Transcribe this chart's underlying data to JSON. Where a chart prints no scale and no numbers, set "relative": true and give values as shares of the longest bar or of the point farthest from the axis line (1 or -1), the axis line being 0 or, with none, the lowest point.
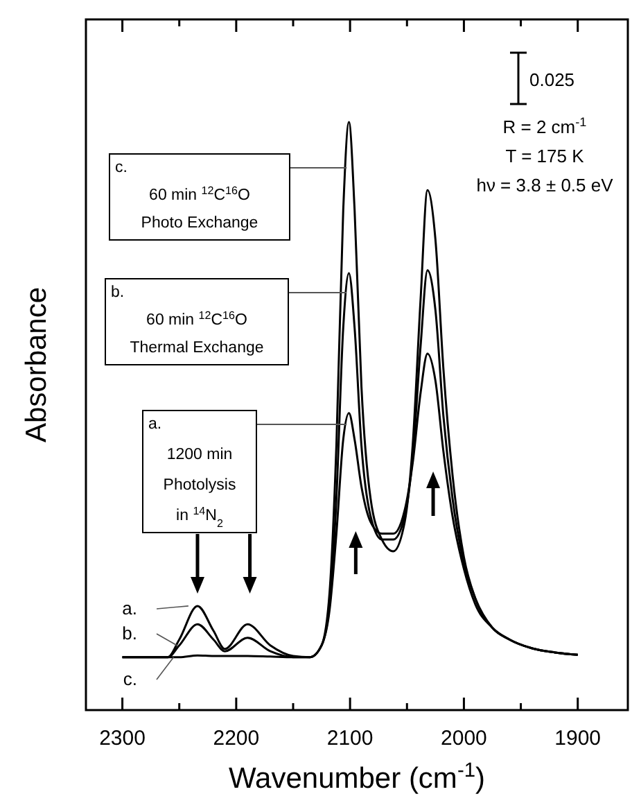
{
  "chart_data": {
    "type": "line",
    "xlabel": "Wavenumber (cm$^{-1}$)",
    "ylabel": "Absorbance",
    "relative": true,
    "xlim": [
      2332,
      1856
    ],
    "xticks": [
      2300,
      {
        "value": 2250,
        "label": null
      },
      2200,
      {
        "value": 2150,
        "label": null
      },
      2100,
      {
        "value": 2050,
        "label": null
      },
      2000,
      {
        "value": 1950,
        "label": null
      },
      1900
    ],
    "tick_labels": "x",
    "grid": false,
    "marker": "none",
    "line_style": "solid",
    "x": [
      2300,
      2260,
      2250,
      2234,
      2220,
      2210,
      2190,
      2170,
      2150,
      2135,
      2125,
      2118,
      2112,
      2106,
      2101,
      2096,
      2090,
      2082,
      2072,
      2062,
      2052,
      2045,
      2038,
      2032,
      2025,
      2018,
      2010,
      2000,
      1990,
      1975,
      1960,
      1940,
      1920,
      1900
    ],
    "series": [
      {
        "name": "a.",
        "color": "#000000",
        "values": [
          0.09,
          0.09,
          0.12,
          0.177,
          0.135,
          0.104,
          0.146,
          0.11,
          0.092,
          0.09,
          0.11,
          0.17,
          0.3,
          0.46,
          0.505,
          0.46,
          0.38,
          0.32,
          0.3,
          0.3,
          0.34,
          0.42,
          0.54,
          0.606,
          0.56,
          0.44,
          0.33,
          0.24,
          0.18,
          0.14,
          0.12,
          0.105,
          0.098,
          0.094
        ]
      },
      {
        "name": "b.",
        "color": "#000000",
        "values": [
          0.09,
          0.09,
          0.11,
          0.146,
          0.12,
          0.1,
          0.123,
          0.1,
          0.09,
          0.09,
          0.11,
          0.18,
          0.36,
          0.65,
          0.743,
          0.65,
          0.45,
          0.33,
          0.29,
          0.29,
          0.33,
          0.43,
          0.62,
          0.748,
          0.68,
          0.5,
          0.36,
          0.25,
          0.19,
          0.14,
          0.12,
          0.105,
          0.098,
          0.094
        ]
      },
      {
        "name": "c.",
        "color": "#000000",
        "values": [
          0.09,
          0.09,
          0.09,
          0.093,
          0.092,
          0.092,
          0.092,
          0.091,
          0.09,
          0.09,
          0.11,
          0.2,
          0.45,
          0.85,
          1.0,
          0.85,
          0.55,
          0.36,
          0.29,
          0.27,
          0.32,
          0.45,
          0.7,
          0.884,
          0.8,
          0.58,
          0.4,
          0.26,
          0.19,
          0.14,
          0.12,
          0.105,
          0.098,
          0.094
        ]
      }
    ],
    "annotations": [
      "a.\n1200 min\nPhotolysis\nin $^{14}$N$_{2}$",
      "b.\n60 min $^{12}$C$^{16}$O\nThermal Exchange",
      "c.\n60 min $^{12}$C$^{16}$O\nPhoto Exchange",
      "0.025",
      "R = 2 cm$^{-1}$",
      "T =  175 K",
      "hν = 3.8 ± 0.5 eV"
    ]
  }
}
